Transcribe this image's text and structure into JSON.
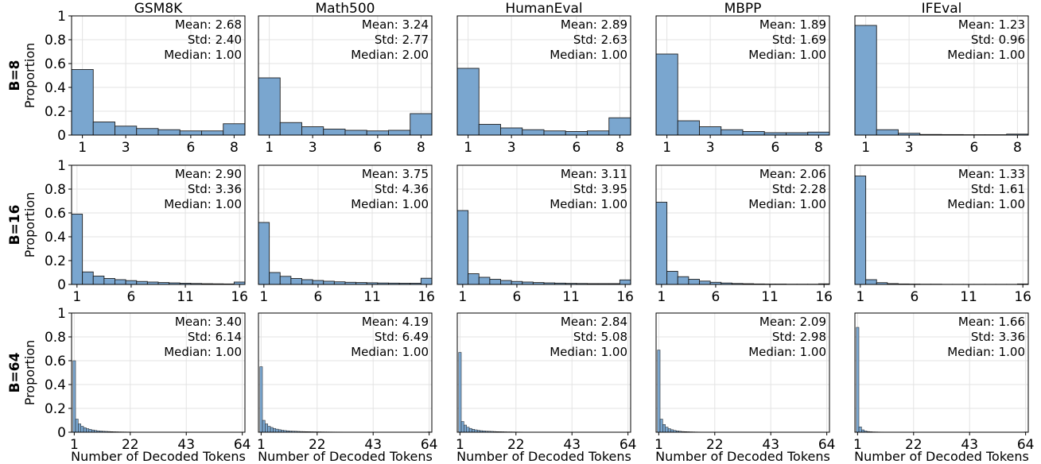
{
  "figure": {
    "column_titles": [
      "GSM8K",
      "Math500",
      "HumanEval",
      "MBPP",
      "IFEval"
    ],
    "row_labels": [
      "B=8",
      "B=16",
      "B=64"
    ],
    "ylabel": "Proportion",
    "xlabel": "Number of Decoded Tokens",
    "stat_labels": {
      "mean": "Mean",
      "std": "Std",
      "median": "Median"
    },
    "y_ticks": [
      "0",
      "0.2",
      "0.4",
      "0.6",
      "0.8",
      "1"
    ],
    "x_ticks_by_row": [
      [
        "1",
        "3",
        "6",
        "8"
      ],
      [
        "1",
        "6",
        "11",
        "16"
      ],
      [
        "1",
        "22",
        "43",
        "64"
      ]
    ],
    "bar_color": "#7aa6cf",
    "bar_edge_color": "#1f1f1f"
  },
  "chart_data": [
    {
      "type": "bar",
      "row": "B=8",
      "title": "GSM8K",
      "x": [
        1,
        2,
        3,
        4,
        5,
        6,
        7,
        8
      ],
      "values": [
        0.55,
        0.11,
        0.075,
        0.055,
        0.045,
        0.035,
        0.035,
        0.095
      ],
      "ylim": [
        0,
        1
      ],
      "xlim": [
        0.5,
        8.5
      ],
      "stats": {
        "mean": "2.68",
        "std": "2.40",
        "median": "1.00"
      }
    },
    {
      "type": "bar",
      "row": "B=8",
      "title": "Math500",
      "x": [
        1,
        2,
        3,
        4,
        5,
        6,
        7,
        8
      ],
      "values": [
        0.48,
        0.105,
        0.07,
        0.05,
        0.04,
        0.035,
        0.04,
        0.18
      ],
      "ylim": [
        0,
        1
      ],
      "xlim": [
        0.5,
        8.5
      ],
      "stats": {
        "mean": "3.24",
        "std": "2.77",
        "median": "2.00"
      }
    },
    {
      "type": "bar",
      "row": "B=8",
      "title": "HumanEval",
      "x": [
        1,
        2,
        3,
        4,
        5,
        6,
        7,
        8
      ],
      "values": [
        0.56,
        0.09,
        0.06,
        0.045,
        0.035,
        0.03,
        0.035,
        0.145
      ],
      "ylim": [
        0,
        1
      ],
      "xlim": [
        0.5,
        8.5
      ],
      "stats": {
        "mean": "2.89",
        "std": "2.63",
        "median": "1.00"
      }
    },
    {
      "type": "bar",
      "row": "B=8",
      "title": "MBPP",
      "x": [
        1,
        2,
        3,
        4,
        5,
        6,
        7,
        8
      ],
      "values": [
        0.68,
        0.12,
        0.07,
        0.045,
        0.03,
        0.02,
        0.02,
        0.025
      ],
      "ylim": [
        0,
        1
      ],
      "xlim": [
        0.5,
        8.5
      ],
      "stats": {
        "mean": "1.89",
        "std": "1.69",
        "median": "1.00"
      }
    },
    {
      "type": "bar",
      "row": "B=8",
      "title": "IFEval",
      "x": [
        1,
        2,
        3,
        4,
        5,
        6,
        7,
        8
      ],
      "values": [
        0.92,
        0.045,
        0.015,
        0.005,
        0.004,
        0.003,
        0.003,
        0.008
      ],
      "ylim": [
        0,
        1
      ],
      "xlim": [
        0.5,
        8.5
      ],
      "stats": {
        "mean": "1.23",
        "std": "0.96",
        "median": "1.00"
      }
    },
    {
      "type": "bar",
      "row": "B=16",
      "title": "GSM8K",
      "x": [
        1,
        2,
        3,
        4,
        5,
        6,
        7,
        8,
        9,
        10,
        11,
        12,
        13,
        14,
        15,
        16
      ],
      "values": [
        0.59,
        0.105,
        0.07,
        0.05,
        0.04,
        0.032,
        0.025,
        0.02,
        0.016,
        0.013,
        0.01,
        0.008,
        0.006,
        0.005,
        0.004,
        0.02
      ],
      "ylim": [
        0,
        1
      ],
      "xlim": [
        0.5,
        16.5
      ],
      "stats": {
        "mean": "2.90",
        "std": "3.36",
        "median": "1.00"
      }
    },
    {
      "type": "bar",
      "row": "B=16",
      "title": "Math500",
      "x": [
        1,
        2,
        3,
        4,
        5,
        6,
        7,
        8,
        9,
        10,
        11,
        12,
        13,
        14,
        15,
        16
      ],
      "values": [
        0.52,
        0.1,
        0.068,
        0.05,
        0.04,
        0.033,
        0.027,
        0.022,
        0.018,
        0.016,
        0.014,
        0.012,
        0.011,
        0.01,
        0.01,
        0.052
      ],
      "ylim": [
        0,
        1
      ],
      "xlim": [
        0.5,
        16.5
      ],
      "stats": {
        "mean": "3.75",
        "std": "4.36",
        "median": "1.00"
      }
    },
    {
      "type": "bar",
      "row": "B=16",
      "title": "HumanEval",
      "x": [
        1,
        2,
        3,
        4,
        5,
        6,
        7,
        8,
        9,
        10,
        11,
        12,
        13,
        14,
        15,
        16
      ],
      "values": [
        0.62,
        0.09,
        0.06,
        0.043,
        0.033,
        0.025,
        0.02,
        0.016,
        0.013,
        0.011,
        0.009,
        0.008,
        0.007,
        0.007,
        0.007,
        0.038
      ],
      "ylim": [
        0,
        1
      ],
      "xlim": [
        0.5,
        16.5
      ],
      "stats": {
        "mean": "3.11",
        "std": "3.95",
        "median": "1.00"
      }
    },
    {
      "type": "bar",
      "row": "B=16",
      "title": "MBPP",
      "x": [
        1,
        2,
        3,
        4,
        5,
        6,
        7,
        8,
        9,
        10,
        11,
        12,
        13,
        14,
        15,
        16
      ],
      "values": [
        0.69,
        0.11,
        0.065,
        0.043,
        0.028,
        0.018,
        0.012,
        0.008,
        0.006,
        0.004,
        0.003,
        0.003,
        0.002,
        0.002,
        0.002,
        0.005
      ],
      "ylim": [
        0,
        1
      ],
      "xlim": [
        0.5,
        16.5
      ],
      "stats": {
        "mean": "2.06",
        "std": "2.28",
        "median": "1.00"
      }
    },
    {
      "type": "bar",
      "row": "B=16",
      "title": "IFEval",
      "x": [
        1,
        2,
        3,
        4,
        5,
        6,
        7,
        8,
        9,
        10,
        11,
        12,
        13,
        14,
        15,
        16
      ],
      "values": [
        0.91,
        0.04,
        0.015,
        0.007,
        0.004,
        0.003,
        0.002,
        0.002,
        0.001,
        0.001,
        0.001,
        0.001,
        0.001,
        0.001,
        0.001,
        0.004
      ],
      "ylim": [
        0,
        1
      ],
      "xlim": [
        0.5,
        16.5
      ],
      "stats": {
        "mean": "1.33",
        "std": "1.61",
        "median": "1.00"
      }
    },
    {
      "type": "bar",
      "row": "B=64",
      "title": "GSM8K",
      "x_range": [
        1,
        64
      ],
      "values": [
        0.6,
        0.11,
        0.07,
        0.05,
        0.038,
        0.03,
        0.024,
        0.019,
        0.015,
        0.012,
        0.01,
        0.008,
        0.007,
        0.006,
        0.005,
        0.004,
        0.0035,
        0.003,
        0.0027,
        0.0024,
        0.0021,
        0.0019,
        0.0017,
        0.0015,
        0.0014,
        0.0013,
        0.0012,
        0.0011,
        0.001,
        0.001,
        0.0009,
        0.0009,
        0.0008,
        0.0008,
        0.0007,
        0.0007,
        0.0006,
        0.0006,
        0.0006,
        0.0005,
        0.0005,
        0.0005,
        0.0005,
        0.0004,
        0.0004,
        0.0004,
        0.0004,
        0.0004,
        0.0003,
        0.0003,
        0.0003,
        0.0003,
        0.0003,
        0.0003,
        0.0003,
        0.0002,
        0.0002,
        0.0002,
        0.0002,
        0.0002,
        0.0002,
        0.0002,
        0.0002,
        0.0015
      ],
      "ylim": [
        0,
        1
      ],
      "xlim": [
        0,
        65
      ],
      "stats": {
        "mean": "3.40",
        "std": "6.14",
        "median": "1.00"
      }
    },
    {
      "type": "bar",
      "row": "B=64",
      "title": "Math500",
      "x_range": [
        1,
        64
      ],
      "values": [
        0.55,
        0.1,
        0.07,
        0.05,
        0.04,
        0.032,
        0.026,
        0.021,
        0.017,
        0.014,
        0.012,
        0.01,
        0.009,
        0.008,
        0.007,
        0.006,
        0.0055,
        0.005,
        0.0045,
        0.004,
        0.0037,
        0.0034,
        0.0031,
        0.0028,
        0.0026,
        0.0024,
        0.0022,
        0.002,
        0.0019,
        0.0018,
        0.0017,
        0.0016,
        0.0015,
        0.0014,
        0.0013,
        0.0012,
        0.0012,
        0.0011,
        0.0011,
        0.001,
        0.001,
        0.0009,
        0.0009,
        0.0009,
        0.0008,
        0.0008,
        0.0008,
        0.0007,
        0.0007,
        0.0007,
        0.0007,
        0.0006,
        0.0006,
        0.0006,
        0.0006,
        0.0006,
        0.0005,
        0.0005,
        0.0005,
        0.0005,
        0.0005,
        0.0005,
        0.0005,
        0.003
      ],
      "ylim": [
        0,
        1
      ],
      "xlim": [
        0,
        65
      ],
      "stats": {
        "mean": "4.19",
        "std": "6.49",
        "median": "1.00"
      }
    },
    {
      "type": "bar",
      "row": "B=64",
      "title": "HumanEval",
      "x_range": [
        1,
        64
      ],
      "values": [
        0.67,
        0.09,
        0.06,
        0.042,
        0.032,
        0.025,
        0.02,
        0.016,
        0.013,
        0.011,
        0.009,
        0.008,
        0.007,
        0.006,
        0.005,
        0.0045,
        0.004,
        0.0035,
        0.003,
        0.0028,
        0.0025,
        0.0022,
        0.002,
        0.0018,
        0.0016,
        0.0015,
        0.0014,
        0.0013,
        0.0012,
        0.0011,
        0.001,
        0.001,
        0.0009,
        0.0009,
        0.0008,
        0.0008,
        0.0007,
        0.0007,
        0.0007,
        0.0006,
        0.0006,
        0.0006,
        0.0005,
        0.0005,
        0.0005,
        0.0005,
        0.0004,
        0.0004,
        0.0004,
        0.0004,
        0.0004,
        0.0003,
        0.0003,
        0.0003,
        0.0003,
        0.0003,
        0.0003,
        0.0003,
        0.0002,
        0.0002,
        0.0002,
        0.0002,
        0.0002,
        0.002
      ],
      "ylim": [
        0,
        1
      ],
      "xlim": [
        0,
        65
      ],
      "stats": {
        "mean": "2.84",
        "std": "5.08",
        "median": "1.00"
      }
    },
    {
      "type": "bar",
      "row": "B=64",
      "title": "MBPP",
      "x_range": [
        1,
        64
      ],
      "values": [
        0.69,
        0.11,
        0.065,
        0.043,
        0.03,
        0.021,
        0.015,
        0.011,
        0.008,
        0.006,
        0.005,
        0.004,
        0.0033,
        0.0027,
        0.0022,
        0.0018,
        0.0015,
        0.0013,
        0.0011,
        0.001,
        0.0009,
        0.0008,
        0.0007,
        0.0006,
        0.0006,
        0.0005,
        0.0005,
        0.0004,
        0.0004,
        0.0004,
        0.0003,
        0.0003,
        0.0003,
        0.0003,
        0.0002,
        0.0002,
        0.0002,
        0.0002,
        0.0002,
        0.0002,
        0.0002,
        0.0002,
        0.0001,
        0.0001,
        0.0001,
        0.0001,
        0.0001,
        0.0001,
        0.0001,
        0.0001,
        0.0001,
        0.0001,
        0.0001,
        0.0001,
        0.0001,
        0.0001,
        0.0001,
        0.0001,
        0.0001,
        0.0001,
        0.0001,
        0.0001,
        0.0001,
        0.0008
      ],
      "ylim": [
        0,
        1
      ],
      "xlim": [
        0,
        65
      ],
      "stats": {
        "mean": "2.09",
        "std": "2.98",
        "median": "1.00"
      }
    },
    {
      "type": "bar",
      "row": "B=64",
      "title": "IFEval",
      "x_range": [
        1,
        64
      ],
      "values": [
        0.88,
        0.045,
        0.02,
        0.01,
        0.006,
        0.004,
        0.003,
        0.0025,
        0.002,
        0.0017,
        0.0015,
        0.0013,
        0.0012,
        0.0011,
        0.001,
        0.0009,
        0.0008,
        0.0008,
        0.0007,
        0.0007,
        0.0006,
        0.0006,
        0.0006,
        0.0005,
        0.0005,
        0.0005,
        0.0005,
        0.0004,
        0.0004,
        0.0004,
        0.0004,
        0.0004,
        0.0003,
        0.0003,
        0.0003,
        0.0003,
        0.0003,
        0.0003,
        0.0003,
        0.0003,
        0.0002,
        0.0002,
        0.0002,
        0.0002,
        0.0002,
        0.0002,
        0.0002,
        0.0002,
        0.0002,
        0.0002,
        0.0002,
        0.0002,
        0.0002,
        0.0002,
        0.0002,
        0.0002,
        0.0002,
        0.0002,
        0.0002,
        0.0002,
        0.0002,
        0.0002,
        0.0002,
        0.0025
      ],
      "ylim": [
        0,
        1
      ],
      "xlim": [
        0,
        65
      ],
      "stats": {
        "mean": "1.66",
        "std": "3.36",
        "median": "1.00"
      }
    }
  ]
}
